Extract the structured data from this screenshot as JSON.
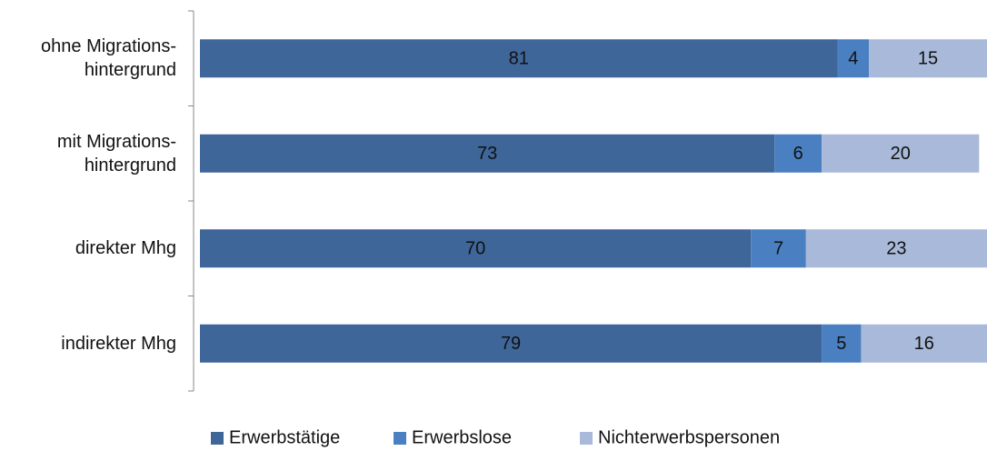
{
  "chart_data": {
    "type": "stacked_barh",
    "categories": [
      "ohne Migrations-\nhintergrund",
      "mit Migrations-\nhintergrund",
      "direkter Mhg",
      "indirekter Mhg"
    ],
    "series": [
      {
        "name": "Erwerbstätige",
        "color": "#3f6699",
        "values": [
          81,
          73,
          70,
          79
        ]
      },
      {
        "name": "Erwerbslose",
        "color": "#4a7fc1",
        "values": [
          4,
          6,
          7,
          5
        ]
      },
      {
        "name": "Nichterwerbspersonen",
        "color": "#a9b9d9",
        "values": [
          15,
          20,
          23,
          16
        ]
      }
    ],
    "xlim": [
      0,
      100
    ],
    "legend": "bottom"
  }
}
